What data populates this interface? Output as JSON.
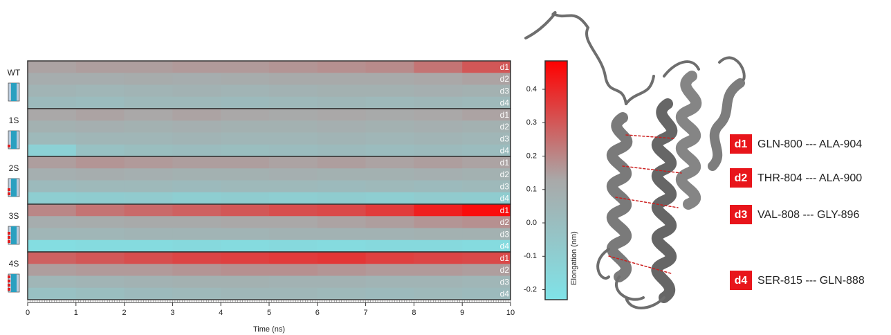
{
  "chart_data": {
    "type": "heatmap",
    "xlabel": "Time (ns)",
    "xlim": [
      0,
      10
    ],
    "xticks": [
      0,
      1,
      2,
      3,
      4,
      5,
      6,
      7,
      8,
      9,
      10
    ],
    "bins": [
      0,
      1,
      2,
      3,
      4,
      5,
      6,
      7,
      8,
      9,
      10
    ],
    "groups": [
      {
        "name": "WT",
        "rows": [
          {
            "name": "d1",
            "values": [
              0.14,
              0.15,
              0.15,
              0.16,
              0.16,
              0.17,
              0.18,
              0.19,
              0.24,
              0.3
            ]
          },
          {
            "name": "d2",
            "values": [
              0.1,
              0.1,
              0.11,
              0.1,
              0.11,
              0.12,
              0.12,
              0.12,
              0.13,
              0.14
            ]
          },
          {
            "name": "d3",
            "values": [
              0.06,
              0.05,
              0.06,
              0.07,
              0.06,
              0.07,
              0.08,
              0.08,
              0.09,
              0.08
            ]
          },
          {
            "name": "d4",
            "values": [
              0.02,
              0.01,
              0.03,
              0.03,
              0.02,
              0.03,
              0.04,
              0.03,
              0.04,
              0.03
            ]
          }
        ]
      },
      {
        "name": "1S",
        "rows": [
          {
            "name": "d1",
            "values": [
              0.13,
              0.14,
              0.13,
              0.14,
              0.13,
              0.12,
              0.13,
              0.12,
              0.13,
              0.14
            ]
          },
          {
            "name": "d2",
            "values": [
              0.08,
              0.09,
              0.08,
              0.09,
              0.08,
              0.08,
              0.09,
              0.08,
              0.09,
              0.08
            ]
          },
          {
            "name": "d3",
            "values": [
              0.03,
              0.05,
              0.05,
              0.06,
              0.05,
              0.05,
              0.06,
              0.05,
              0.06,
              0.05
            ]
          },
          {
            "name": "d4",
            "values": [
              -0.12,
              -0.02,
              0.0,
              0.01,
              0.0,
              0.01,
              0.02,
              0.01,
              0.02,
              0.01
            ]
          }
        ]
      },
      {
        "name": "2S",
        "rows": [
          {
            "name": "d1",
            "values": [
              0.15,
              0.17,
              0.16,
              0.15,
              0.15,
              0.14,
              0.15,
              0.14,
              0.15,
              0.14
            ]
          },
          {
            "name": "d2",
            "values": [
              0.09,
              0.1,
              0.09,
              0.08,
              0.08,
              0.09,
              0.08,
              0.08,
              0.09,
              0.08
            ]
          },
          {
            "name": "d3",
            "values": [
              0.02,
              0.03,
              0.03,
              0.02,
              0.03,
              0.03,
              0.02,
              0.03,
              0.02,
              0.03
            ]
          },
          {
            "name": "d4",
            "values": [
              -0.1,
              -0.09,
              -0.08,
              -0.1,
              -0.09,
              -0.1,
              -0.09,
              -0.1,
              -0.08,
              -0.09
            ]
          }
        ]
      },
      {
        "name": "3S",
        "rows": [
          {
            "name": "d1",
            "values": [
              0.2,
              0.24,
              0.26,
              0.28,
              0.3,
              0.32,
              0.33,
              0.36,
              0.42,
              0.46
            ]
          },
          {
            "name": "d2",
            "values": [
              0.1,
              0.11,
              0.12,
              0.12,
              0.13,
              0.13,
              0.14,
              0.15,
              0.17,
              0.18
            ]
          },
          {
            "name": "d3",
            "values": [
              0.05,
              0.05,
              0.06,
              0.06,
              0.06,
              0.07,
              0.07,
              0.07,
              0.08,
              0.08
            ]
          },
          {
            "name": "d4",
            "values": [
              -0.19,
              -0.18,
              -0.18,
              -0.17,
              -0.18,
              -0.17,
              -0.18,
              -0.17,
              -0.17,
              -0.18
            ]
          }
        ]
      },
      {
        "name": "4S",
        "rows": [
          {
            "name": "d1",
            "values": [
              0.28,
              0.3,
              0.32,
              0.34,
              0.35,
              0.36,
              0.37,
              0.35,
              0.34,
              0.33
            ]
          },
          {
            "name": "d2",
            "values": [
              0.15,
              0.16,
              0.16,
              0.17,
              0.18,
              0.18,
              0.17,
              0.16,
              0.16,
              0.15
            ]
          },
          {
            "name": "d3",
            "values": [
              0.05,
              0.06,
              0.07,
              0.08,
              0.08,
              0.07,
              0.07,
              0.06,
              0.06,
              0.05
            ]
          },
          {
            "name": "d4",
            "values": [
              -0.02,
              0.0,
              0.02,
              0.03,
              0.04,
              0.04,
              0.03,
              0.02,
              0.03,
              0.02
            ]
          }
        ]
      }
    ],
    "colorbar": {
      "label": "Elongation (nm)",
      "clim": [
        -0.23,
        0.485
      ],
      "ticks": [
        -0.2,
        -0.1,
        {
          "value": 0,
          "label": "0.0"
        },
        0.1,
        0.2,
        0.3,
        0.4
      ],
      "colors": [
        "#7fe3e8",
        "#a9a9a9",
        "#ff0000"
      ]
    }
  },
  "distance_legend": [
    {
      "id": "d1",
      "label": "GLN-800 --- ALA-904"
    },
    {
      "id": "d2",
      "label": "THR-804 --- ALA-900"
    },
    {
      "id": "d3",
      "label": "VAL-808 --- GLY-896"
    },
    {
      "id": "d4",
      "label": "SER-815 --- GLN-888"
    }
  ]
}
